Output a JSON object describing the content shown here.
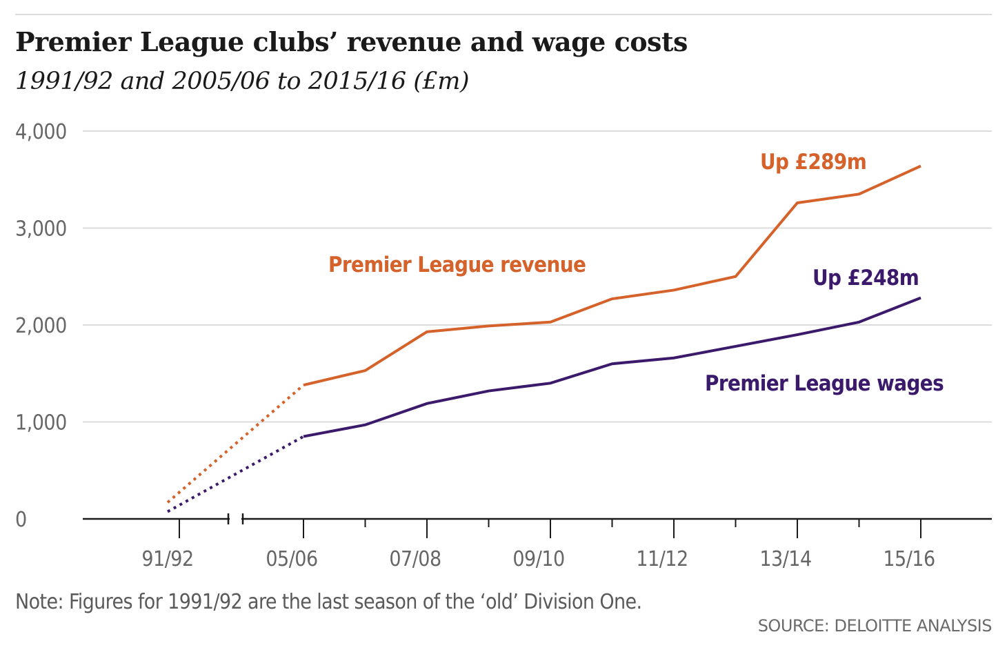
{
  "chart_data": {
    "type": "line",
    "title": "Premier League clubs’ revenue and wage costs",
    "subtitle": "1991/92 and 2005/06 to 2015/16 (£m)",
    "xlabel": "",
    "ylabel": "",
    "ylim": [
      0,
      4000
    ],
    "yticks": [
      "0",
      "1,000",
      "2,000",
      "3,000",
      "4,000"
    ],
    "ytick_values": [
      0,
      1000,
      2000,
      3000,
      4000
    ],
    "x": [
      "91/92",
      "05/06",
      "06/07",
      "07/08",
      "08/09",
      "09/10",
      "10/11",
      "11/12",
      "12/13",
      "13/14",
      "14/15",
      "15/16"
    ],
    "xtick_labels": [
      "91/92",
      "05/06",
      "07/08",
      "09/10",
      "11/12",
      "13/14",
      "15/16"
    ],
    "grid": true,
    "series": [
      {
        "name": "Premier League revenue",
        "color": "#d4622a",
        "values": [
          170,
          1380,
          1530,
          1930,
          1990,
          2030,
          2270,
          2360,
          2500,
          3260,
          3350,
          3640
        ],
        "annotation": "Up £289m"
      },
      {
        "name": "Premier League wages",
        "color": "#3b1a6b",
        "values": [
          75,
          850,
          970,
          1190,
          1320,
          1400,
          1600,
          1660,
          1780,
          1900,
          2030,
          2280
        ],
        "annotation": "Up £248m"
      }
    ]
  },
  "labels": {
    "title": "Premier League clubs’ revenue and wage costs",
    "subtitle": "1991/92 and 2005/06 to 2015/16 (£m)",
    "revenue_label": "Premier League revenue",
    "wages_label": "Premier League wages",
    "revenue_change": "Up £289m",
    "wages_change": "Up £248m",
    "note": "Note: Figures for 1991/92 are the last season of the ‘old’ Division One.",
    "source": "SOURCE: DELOITTE ANALYSIS"
  },
  "colors": {
    "revenue": "#d4622a",
    "wages": "#3b1a6b",
    "grid": "#dcdcdc",
    "axis": "#1a1a1a",
    "tick_text": "#666666"
  }
}
